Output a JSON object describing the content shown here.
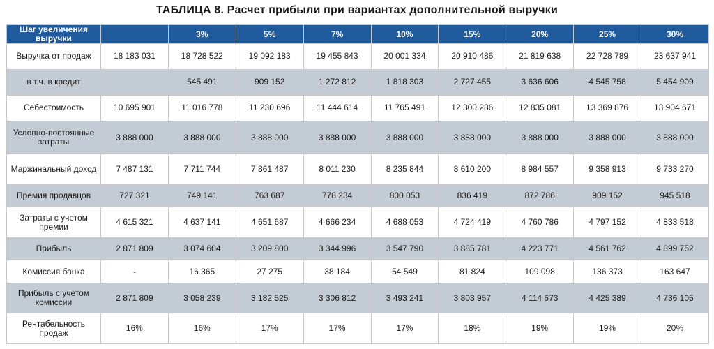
{
  "title": "ТАБЛИЦА 8. Расчет прибыли при вариантах дополнительной выручки",
  "table": {
    "corner_header": "Шаг увеличения выручки",
    "columns": [
      "",
      "3%",
      "5%",
      "7%",
      "10%",
      "15%",
      "20%",
      "25%",
      "30%"
    ],
    "rows": [
      {
        "label": "Выручка от продаж",
        "values": [
          "18 183 031",
          "18 728 522",
          "19 092 183",
          "19 455 843",
          "20 001 334",
          "20 910 486",
          "21 819 638",
          "22 728 789",
          "23 637 941"
        ]
      },
      {
        "label": "в т.ч. в кредит",
        "values": [
          "",
          "545 491",
          "909 152",
          "1 272 812",
          "1 818 303",
          "2 727 455",
          "3 636 606",
          "4 545 758",
          "5 454 909"
        ]
      },
      {
        "label": "Себестоимость",
        "values": [
          "10 695 901",
          "11 016 778",
          "11 230 696",
          "11 444 614",
          "11 765 491",
          "12 300 286",
          "12 835 081",
          "13 369 876",
          "13 904 671"
        ]
      },
      {
        "label": "Условно-постоянные затраты",
        "values": [
          "3 888 000",
          "3 888 000",
          "3 888 000",
          "3 888 000",
          "3 888 000",
          "3 888 000",
          "3 888 000",
          "3 888 000",
          "3 888 000"
        ]
      },
      {
        "label": "Маржинальный доход",
        "values": [
          "7 487 131",
          "7 711 744",
          "7 861 487",
          "8 011 230",
          "8 235 844",
          "8 610 200",
          "8 984 557",
          "9 358 913",
          "9 733 270"
        ]
      },
      {
        "label": "Премия продавцов",
        "values": [
          "727 321",
          "749 141",
          "763 687",
          "778 234",
          "800 053",
          "836 419",
          "872 786",
          "909 152",
          "945 518"
        ]
      },
      {
        "label": "Затраты с учетом премии",
        "values": [
          "4 615 321",
          "4 637 141",
          "4 651 687",
          "4 666 234",
          "4 688 053",
          "4 724 419",
          "4 760 786",
          "4 797 152",
          "4 833 518"
        ]
      },
      {
        "label": "Прибыль",
        "values": [
          "2 871 809",
          "3 074 604",
          "3 209 800",
          "3 344 996",
          "3 547 790",
          "3 885 781",
          "4 223 771",
          "4 561 762",
          "4 899 752"
        ]
      },
      {
        "label": "Комиссия банка",
        "values": [
          "-",
          "16 365",
          "27 275",
          "38 184",
          "54 549",
          "81 824",
          "109 098",
          "136 373",
          "163 647"
        ]
      },
      {
        "label": "Прибыль с учетом комиссии",
        "values": [
          "2 871 809",
          "3 058 239",
          "3 182 525",
          "3 306 812",
          "3 493 241",
          "3 803 957",
          "4 114 673",
          "4 425 389",
          "4 736 105"
        ]
      },
      {
        "label": "Рентабельность продаж",
        "values": [
          "16%",
          "16%",
          "17%",
          "17%",
          "17%",
          "18%",
          "19%",
          "19%",
          "20%"
        ]
      }
    ]
  }
}
